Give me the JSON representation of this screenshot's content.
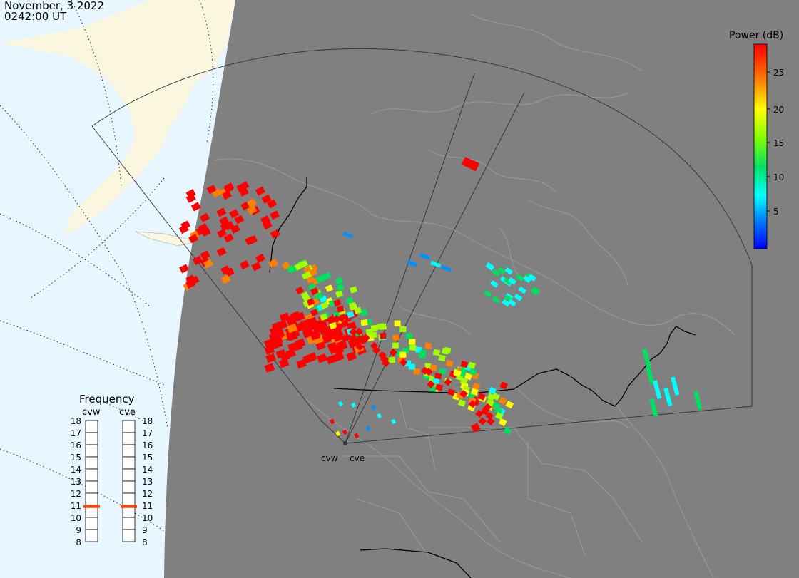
{
  "header": {
    "date": "November, 3 2022",
    "time": "0242:00 UT"
  },
  "legend": {
    "title": "Power (dB)",
    "ticks": [
      "25",
      "20",
      "15",
      "10",
      "5"
    ],
    "colors": [
      "#ff0000",
      "#ff8000",
      "#ffff00",
      "#80ff00",
      "#00ff60",
      "#00ffff",
      "#0080ff",
      "#0000ff"
    ]
  },
  "stations": {
    "west": "cvw",
    "east": "cve"
  },
  "frequency": {
    "title": "Frequency",
    "labels": [
      "18",
      "17",
      "16",
      "15",
      "14",
      "13",
      "12",
      "11",
      "10",
      "9",
      "8"
    ],
    "selected_mhz": 10.9,
    "marker_color": "#ff4000"
  },
  "colors": {
    "background_gray": "#808080",
    "ocean": "#e8f6ff",
    "land_outside": "#fbf6e0"
  }
}
